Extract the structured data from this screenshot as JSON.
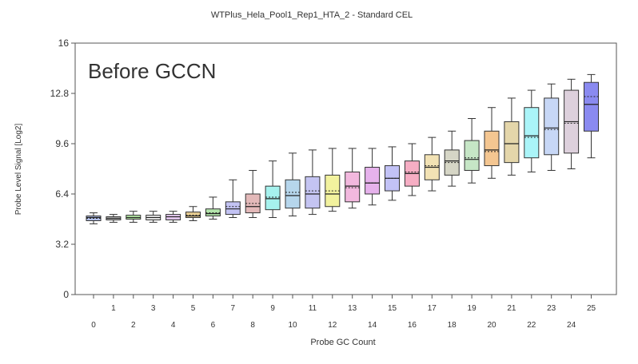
{
  "chart_data": {
    "type": "boxplot",
    "title": "WTPlus_Hela_Pool1_Rep1_HTA_2 - Standard CEL",
    "annotation": "Before GCCN",
    "xlabel": "Probe GC Count",
    "ylabel": "Probe Level Signal [Log2]",
    "ylim": [
      0,
      16
    ],
    "yticks": [
      "0",
      "3.2",
      "6.4",
      "9.6",
      "12.8",
      "16"
    ],
    "categories": [
      "0",
      "1",
      "2",
      "3",
      "4",
      "5",
      "6",
      "7",
      "8",
      "9",
      "10",
      "11",
      "12",
      "13",
      "14",
      "15",
      "16",
      "17",
      "18",
      "19",
      "20",
      "21",
      "22",
      "23",
      "24",
      "25"
    ],
    "colors": [
      "#b3c0ec",
      "#c9c9c9",
      "#b9eea8",
      "#eeeeee",
      "#e2c6ee",
      "#e7cd92",
      "#b3e4ab",
      "#c3c3f4",
      "#e3b9b9",
      "#a6f2ee",
      "#b6d6ec",
      "#c4c4f2",
      "#f2f29e",
      "#f2b8de",
      "#e6b2ec",
      "#c2c2f6",
      "#f6aec4",
      "#f2e2b4",
      "#d6d6c6",
      "#c6e6c6",
      "#f4c691",
      "#e4d6aa",
      "#aaf4f8",
      "#c7d7f6",
      "#ddd0dc",
      "#8a8af0"
    ],
    "boxes": [
      {
        "min": 4.5,
        "q1": 4.7,
        "median": 4.9,
        "mean": 4.85,
        "q3": 5.0,
        "max": 5.2
      },
      {
        "min": 4.6,
        "q1": 4.75,
        "median": 4.85,
        "mean": 4.85,
        "q3": 4.95,
        "max": 5.1
      },
      {
        "min": 4.6,
        "q1": 4.8,
        "median": 4.9,
        "mean": 4.9,
        "q3": 5.05,
        "max": 5.3
      },
      {
        "min": 4.6,
        "q1": 4.75,
        "median": 4.9,
        "mean": 4.9,
        "q3": 5.05,
        "max": 5.3
      },
      {
        "min": 4.6,
        "q1": 4.75,
        "median": 4.95,
        "mean": 4.95,
        "q3": 5.1,
        "max": 5.3
      },
      {
        "min": 4.7,
        "q1": 4.9,
        "median": 5.0,
        "mean": 5.05,
        "q3": 5.25,
        "max": 5.6
      },
      {
        "min": 4.8,
        "q1": 5.0,
        "median": 5.15,
        "mean": 5.2,
        "q3": 5.45,
        "max": 6.2
      },
      {
        "min": 4.9,
        "q1": 5.1,
        "median": 5.45,
        "mean": 5.6,
        "q3": 5.9,
        "max": 7.3
      },
      {
        "min": 4.9,
        "q1": 5.2,
        "median": 5.6,
        "mean": 5.8,
        "q3": 6.4,
        "max": 7.9
      },
      {
        "min": 4.9,
        "q1": 5.4,
        "median": 6.1,
        "mean": 6.2,
        "q3": 6.9,
        "max": 8.5
      },
      {
        "min": 5.0,
        "q1": 5.5,
        "median": 6.3,
        "mean": 6.5,
        "q3": 7.3,
        "max": 9.0
      },
      {
        "min": 5.1,
        "q1": 5.5,
        "median": 6.4,
        "mean": 6.6,
        "q3": 7.5,
        "max": 9.2
      },
      {
        "min": 5.3,
        "q1": 5.6,
        "median": 6.4,
        "mean": 6.6,
        "q3": 7.6,
        "max": 9.3
      },
      {
        "min": 5.5,
        "q1": 5.9,
        "median": 6.9,
        "mean": 6.8,
        "q3": 7.8,
        "max": 9.3
      },
      {
        "min": 5.7,
        "q1": 6.4,
        "median": 7.1,
        "mean": 7.1,
        "q3": 8.1,
        "max": 9.3
      },
      {
        "min": 6.0,
        "q1": 6.6,
        "median": 7.4,
        "mean": 7.4,
        "q3": 8.2,
        "max": 9.4
      },
      {
        "min": 6.3,
        "q1": 6.9,
        "median": 7.7,
        "mean": 7.8,
        "q3": 8.5,
        "max": 9.6
      },
      {
        "min": 6.6,
        "q1": 7.3,
        "median": 8.1,
        "mean": 8.2,
        "q3": 8.9,
        "max": 10.0
      },
      {
        "min": 6.9,
        "q1": 7.6,
        "median": 8.5,
        "mean": 8.4,
        "q3": 9.2,
        "max": 10.4
      },
      {
        "min": 7.1,
        "q1": 7.9,
        "median": 8.6,
        "mean": 8.7,
        "q3": 9.8,
        "max": 11.2
      },
      {
        "min": 7.4,
        "q1": 8.2,
        "median": 9.2,
        "mean": 9.1,
        "q3": 10.4,
        "max": 11.9
      },
      {
        "min": 7.6,
        "q1": 8.4,
        "median": 9.6,
        "mean": 9.6,
        "q3": 11.0,
        "max": 12.5
      },
      {
        "min": 7.8,
        "q1": 8.7,
        "median": 10.1,
        "mean": 10.0,
        "q3": 11.9,
        "max": 13.0
      },
      {
        "min": 7.9,
        "q1": 8.9,
        "median": 10.6,
        "mean": 10.5,
        "q3": 12.5,
        "max": 13.4
      },
      {
        "min": 8.0,
        "q1": 9.0,
        "median": 11.0,
        "mean": 10.9,
        "q3": 13.0,
        "max": 13.7
      },
      {
        "min": 8.7,
        "q1": 10.4,
        "median": 12.1,
        "mean": 12.6,
        "q3": 13.5,
        "max": 14.0
      }
    ],
    "grid": false,
    "legend": "none"
  }
}
